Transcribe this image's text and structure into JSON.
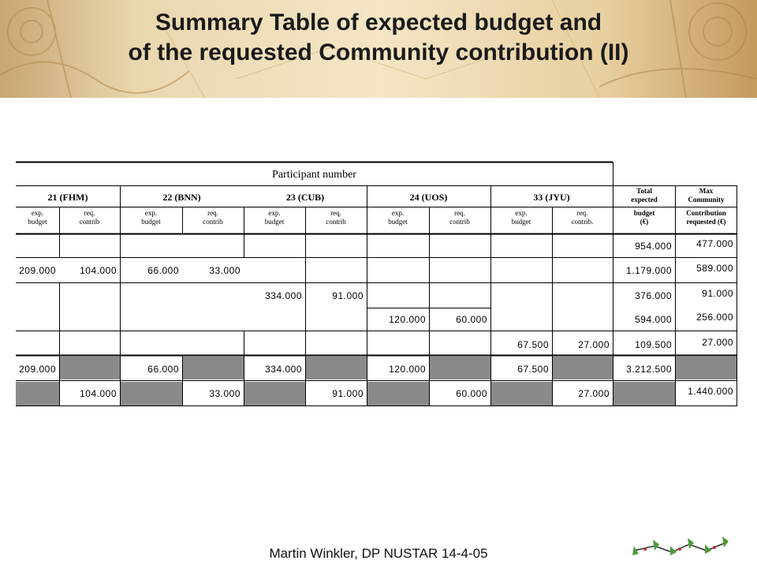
{
  "slide": {
    "title_line1": "Summary Table of expected budget and",
    "title_line2": "of the requested Community contribution (II)",
    "footer": "Martin Winkler, DP NUSTAR 14-4-05"
  },
  "table": {
    "participant_header": "Participant number",
    "participants": [
      "21 (FHM)",
      "22 (BNN)",
      "23 (CUB)",
      "24 (UOS)",
      "33  (JYU)"
    ],
    "total_header": [
      "Total",
      "expected"
    ],
    "max_header": [
      "Max",
      "Community"
    ],
    "sub_exp": [
      "exp.",
      "budget"
    ],
    "sub_req": [
      "req.",
      "contrib"
    ],
    "sub_req_last": [
      "req.",
      "contrib."
    ],
    "total_sub": [
      "budget",
      "(€)"
    ],
    "max_sub": [
      "Contribution",
      "requested (€)"
    ],
    "rows": [
      [
        "",
        "",
        "",
        "",
        "",
        "",
        "",
        "",
        "",
        "",
        "954.000",
        "477.000"
      ],
      [
        "209.000",
        "104.000",
        "66.000",
        "33.000",
        "",
        "",
        "",
        "",
        "",
        "",
        "1.179.000",
        "589.000"
      ],
      [
        "",
        "",
        "",
        "",
        "334.000",
        "91.000",
        "",
        "",
        "",
        "",
        "376.000",
        "91.000"
      ],
      [
        "",
        "",
        "",
        "",
        "",
        "",
        "120.000",
        "60.000",
        "",
        "",
        "594.000",
        "256.000"
      ],
      [
        "",
        "",
        "",
        "",
        "",
        "",
        "",
        "",
        "67.500",
        "27.000",
        "109.500",
        "27.000"
      ],
      [
        "209.000",
        "",
        "66.000",
        "",
        "334.000",
        "",
        "120.000",
        "",
        "67.500",
        "",
        "3.212.500",
        ""
      ],
      [
        "",
        "104.000",
        "",
        "33.000",
        "",
        "91.000",
        "",
        "60.000",
        "",
        "27.000",
        "",
        "1.440.000"
      ]
    ]
  }
}
